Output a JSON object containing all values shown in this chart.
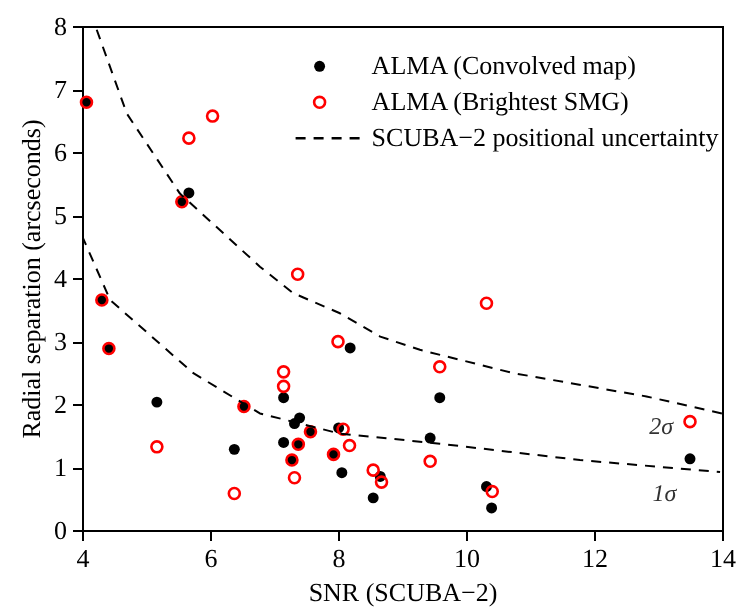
{
  "chart_data": {
    "type": "scatter",
    "xlabel": "SNR (SCUBA−2)",
    "ylabel": "Radial separation (arcseconds)",
    "xlim": [
      4,
      14
    ],
    "ylim": [
      0,
      8
    ],
    "xticks": [
      4,
      6,
      8,
      10,
      12,
      14
    ],
    "yticks": [
      0,
      1,
      2,
      3,
      4,
      5,
      6,
      7,
      8
    ],
    "grid": false,
    "legend": "top right",
    "marker": "circle",
    "series": [
      {
        "name": "ALMA (Convolved map)",
        "color": "#000000",
        "x": [
          4.07,
          5.67,
          5.56,
          4.31,
          4.42,
          5.17,
          6.38,
          6.53,
          7.15,
          7.32,
          7.4,
          7.15,
          7.38,
          7.28,
          7.57,
          8.19,
          8.01,
          7.93,
          8.06,
          8.66,
          8.55,
          9.59,
          9.44,
          10.32,
          10.4,
          13.5
        ],
        "values": [
          6.79,
          5.35,
          5.21,
          3.65,
          2.88,
          2.03,
          1.28,
          1.96,
          2.1,
          1.69,
          1.78,
          1.39,
          1.36,
          1.11,
          1.56,
          2.89,
          1.62,
          1.2,
          0.91,
          0.85,
          0.51,
          2.1,
          1.46,
          0.69,
          0.35,
          1.13
        ]
      },
      {
        "name": "ALMA (Brightest SMG)",
        "color": "#ff0000",
        "x": [
          4.07,
          5.56,
          5.67,
          6.04,
          7.37,
          4.31,
          4.42,
          5.17,
          6.38,
          6.53,
          7.15,
          7.15,
          7.38,
          7.28,
          7.32,
          7.57,
          8.0,
          8.08,
          8.18,
          7.93,
          8.55,
          8.68,
          10.32,
          9.59,
          9.44,
          10.41,
          13.5
        ],
        "values": [
          6.79,
          5.21,
          6.22,
          6.57,
          4.06,
          3.65,
          2.88,
          1.32,
          0.58,
          1.96,
          2.51,
          2.28,
          1.36,
          1.11,
          0.83,
          1.56,
          2.99,
          1.6,
          1.34,
          1.2,
          0.95,
          0.76,
          3.6,
          2.59,
          1.09,
          0.61,
          1.72
        ]
      },
      {
        "name": "SCUBA−2 positional uncertainty",
        "type": "line",
        "color": "#000000",
        "line_style": "dashed",
        "marker": "none",
        "x": [
          4.23,
          4.7,
          5.53,
          6.78,
          7.3,
          8.03,
          8.66,
          9.28,
          10.74,
          12.82,
          14.0
        ],
        "values": [
          7.94,
          6.61,
          5.34,
          4.18,
          3.76,
          3.44,
          3.07,
          2.86,
          2.49,
          2.12,
          1.85
        ]
      },
      {
        "type": "line",
        "color": "#000000",
        "line_style": "dashed",
        "marker": "none",
        "x": [
          4.0,
          4.44,
          5.74,
          6.78,
          8.03,
          9.59,
          11.78,
          13.97
        ],
        "values": [
          4.67,
          3.65,
          2.49,
          1.85,
          1.53,
          1.37,
          1.11,
          0.92
        ]
      }
    ],
    "annotations": [
      {
        "text": "2σ",
        "x": 13.05,
        "y": 2.07
      },
      {
        "text": "1σ",
        "x": 13.1,
        "y": 1.0
      }
    ]
  }
}
